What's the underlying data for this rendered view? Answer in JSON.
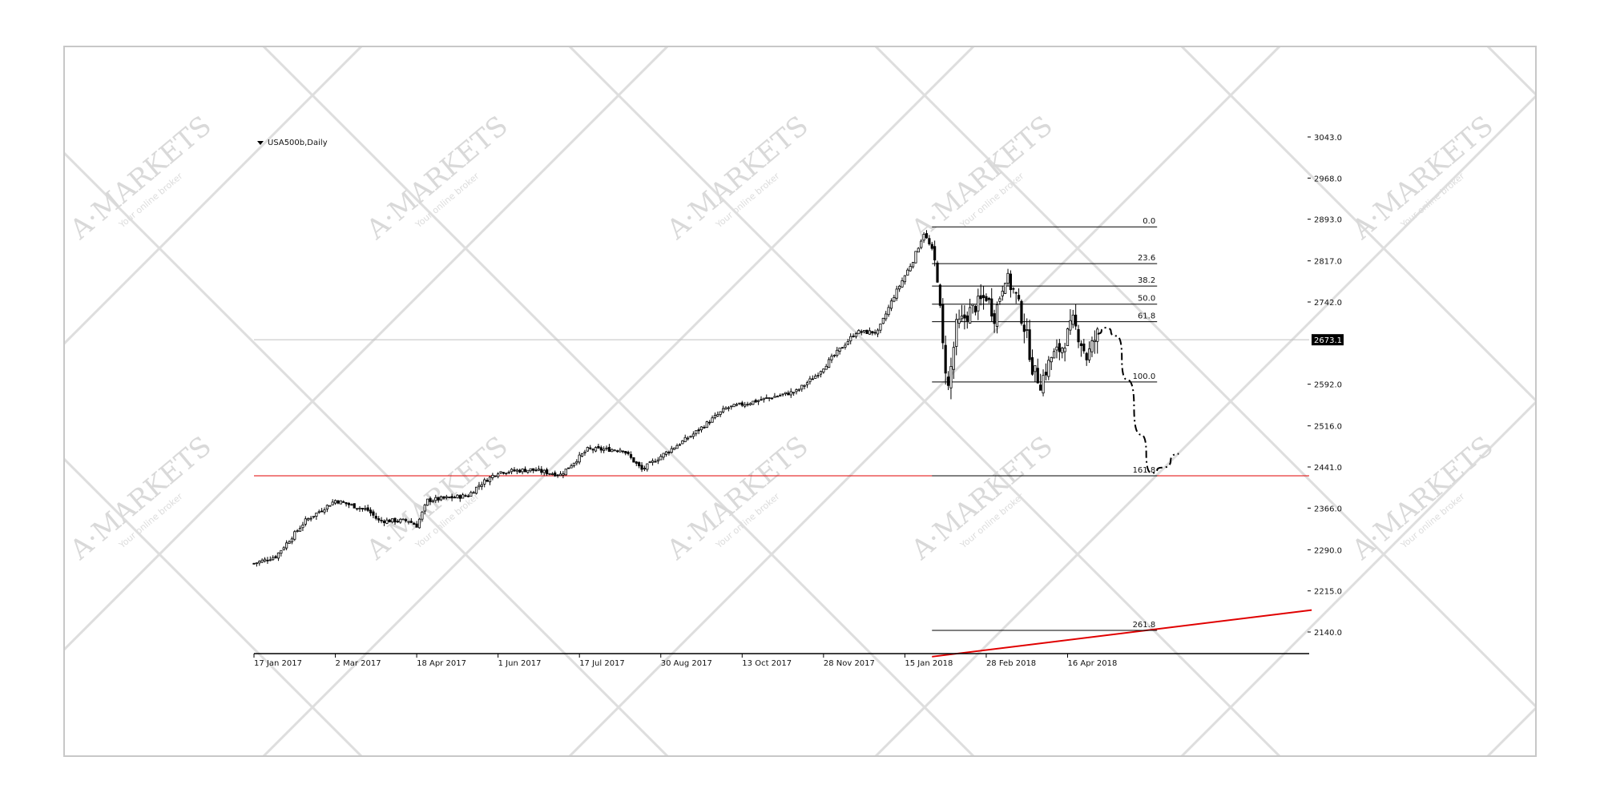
{
  "watermark": {
    "brand": "A·MARKETS",
    "tagline": "Your online broker"
  },
  "chart_data": {
    "type": "candlestick",
    "title": "USA500b,Daily",
    "y_ticks": [
      3043.0,
      2968.0,
      2893.0,
      2817.0,
      2742.0,
      2592.0,
      2516.0,
      2441.0,
      2366.0,
      2290.0,
      2215.0,
      2140.0
    ],
    "y_tick_labels": [
      "3043.0",
      "2968.0",
      "2893.0",
      "2817.0",
      "2742.0",
      "2592.0",
      "2516.0",
      "2441.0",
      "2366.0",
      "2290.0",
      "2215.0",
      "2140.0"
    ],
    "ylim": [
      2100,
      3043
    ],
    "x_tick_labels": [
      "17 Jan 2017",
      "2 Mar 2017",
      "18 Apr 2017",
      "1 Jun 2017",
      "17 Jul 2017",
      "30 Aug 2017",
      "13 Oct 2017",
      "28 Nov 2017",
      "15 Jan 2018",
      "28 Feb 2018",
      "16 Apr 2018"
    ],
    "bars_per_x_tick": 30,
    "current_price": {
      "value": 2673.1,
      "label": "2673.1"
    },
    "close_anchors": [
      [
        0,
        2265
      ],
      [
        8,
        2278
      ],
      [
        19,
        2343
      ],
      [
        30,
        2380
      ],
      [
        42,
        2362
      ],
      [
        46,
        2343
      ],
      [
        57,
        2343
      ],
      [
        60,
        2334
      ],
      [
        64,
        2380
      ],
      [
        79,
        2389
      ],
      [
        83,
        2408
      ],
      [
        90,
        2432
      ],
      [
        102,
        2436
      ],
      [
        113,
        2427
      ],
      [
        123,
        2473
      ],
      [
        136,
        2473
      ],
      [
        143,
        2436
      ],
      [
        151,
        2464
      ],
      [
        162,
        2501
      ],
      [
        174,
        2548
      ],
      [
        189,
        2566
      ],
      [
        200,
        2579
      ],
      [
        207,
        2607
      ],
      [
        215,
        2650
      ],
      [
        222,
        2687
      ],
      [
        230,
        2687
      ],
      [
        236,
        2753
      ],
      [
        243,
        2818
      ],
      [
        247,
        2868
      ],
      [
        250,
        2836
      ],
      [
        252,
        2790
      ],
      [
        254,
        2660
      ],
      [
        256,
        2585
      ],
      [
        259,
        2697
      ],
      [
        264,
        2725
      ],
      [
        270,
        2753
      ],
      [
        273,
        2716
      ],
      [
        277,
        2790
      ],
      [
        281,
        2753
      ],
      [
        285,
        2678
      ],
      [
        287,
        2622
      ],
      [
        290,
        2594
      ],
      [
        294,
        2641
      ],
      [
        298,
        2660
      ],
      [
        302,
        2706
      ],
      [
        305,
        2669
      ],
      [
        307,
        2641
      ],
      [
        311,
        2684
      ]
    ],
    "horizontal_lines": [
      {
        "price": 2673.1,
        "color": "#c0c0c0"
      },
      {
        "price": 2425,
        "color": "#e00000"
      }
    ],
    "trend_line": {
      "from": [
        250,
        2095
      ],
      "to": [
        390,
        2180
      ],
      "color": "#e00000"
    },
    "fibonacci": {
      "levels": [
        {
          "label": "0.0",
          "price": 2879
        },
        {
          "label": "23.6",
          "price": 2812
        },
        {
          "label": "38.2",
          "price": 2771
        },
        {
          "label": "50.0",
          "price": 2738
        },
        {
          "label": "61.8",
          "price": 2706
        },
        {
          "label": "100.0",
          "price": 2596
        },
        {
          "label": "161.8",
          "price": 2425
        },
        {
          "label": "261.8",
          "price": 2143
        }
      ],
      "start_bar": 250,
      "end_bar": 333
    },
    "projection_path": [
      [
        311,
        2684
      ],
      [
        314,
        2695
      ],
      [
        318,
        2680
      ],
      [
        322,
        2600
      ],
      [
        327,
        2500
      ],
      [
        331,
        2430
      ],
      [
        335,
        2440
      ],
      [
        341,
        2465
      ]
    ]
  }
}
